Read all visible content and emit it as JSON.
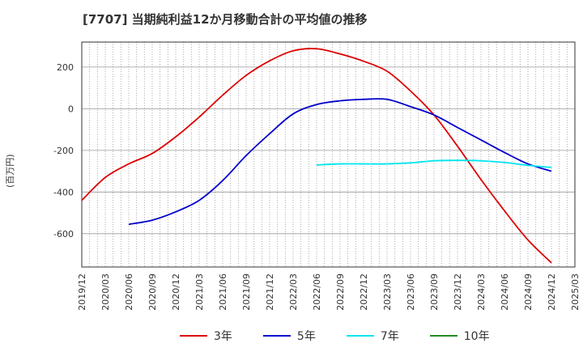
{
  "title": "[7707]  当期純利益12か月移動合計の平均値の推移",
  "chart_data": {
    "type": "line",
    "title": "[7707]  当期純利益12か月移動合計の平均値の推移",
    "xlabel": "",
    "ylabel": "(百万円)",
    "x_ticks": [
      "2019/12",
      "2020/03",
      "2020/06",
      "2020/09",
      "2020/12",
      "2021/03",
      "2021/06",
      "2021/09",
      "2021/12",
      "2022/03",
      "2022/06",
      "2022/09",
      "2022/12",
      "2023/03",
      "2023/06",
      "2023/09",
      "2023/12",
      "2024/03",
      "2024/06",
      "2024/09",
      "2024/12",
      "2025/03"
    ],
    "y_ticks": [
      200,
      0,
      -200,
      -400,
      -600
    ],
    "ylim": [
      -760,
      320
    ],
    "xlim": [
      "2019/12",
      "2025/03"
    ],
    "grid": true,
    "legend_position": "bottom",
    "series": [
      {
        "name": "3年",
        "color": "#dd0000",
        "points": [
          [
            "2019/12",
            -440
          ],
          [
            "2020/03",
            -330
          ],
          [
            "2020/06",
            -265
          ],
          [
            "2020/09",
            -215
          ],
          [
            "2020/12",
            -135
          ],
          [
            "2021/03",
            -40
          ],
          [
            "2021/06",
            65
          ],
          [
            "2021/09",
            160
          ],
          [
            "2021/12",
            230
          ],
          [
            "2022/03",
            278
          ],
          [
            "2022/06",
            288
          ],
          [
            "2022/09",
            263
          ],
          [
            "2022/12",
            228
          ],
          [
            "2023/03",
            180
          ],
          [
            "2023/06",
            85
          ],
          [
            "2023/09",
            -30
          ],
          [
            "2023/12",
            -180
          ],
          [
            "2024/03",
            -340
          ],
          [
            "2024/06",
            -490
          ],
          [
            "2024/09",
            -630
          ],
          [
            "2024/12",
            -740
          ]
        ]
      },
      {
        "name": "5年",
        "color": "#0000cc",
        "points": [
          [
            "2020/06",
            -555
          ],
          [
            "2020/09",
            -535
          ],
          [
            "2020/12",
            -495
          ],
          [
            "2021/03",
            -440
          ],
          [
            "2021/06",
            -345
          ],
          [
            "2021/09",
            -225
          ],
          [
            "2021/12",
            -120
          ],
          [
            "2022/03",
            -25
          ],
          [
            "2022/06",
            20
          ],
          [
            "2022/09",
            38
          ],
          [
            "2022/12",
            45
          ],
          [
            "2023/03",
            45
          ],
          [
            "2023/06",
            10
          ],
          [
            "2023/09",
            -30
          ],
          [
            "2023/12",
            -90
          ],
          [
            "2024/03",
            -150
          ],
          [
            "2024/06",
            -210
          ],
          [
            "2024/09",
            -265
          ],
          [
            "2024/12",
            -300
          ]
        ]
      },
      {
        "name": "7年",
        "color": "#00e5ee",
        "points": [
          [
            "2022/06",
            -270
          ],
          [
            "2022/09",
            -265
          ],
          [
            "2022/12",
            -265
          ],
          [
            "2023/03",
            -265
          ],
          [
            "2023/06",
            -260
          ],
          [
            "2023/09",
            -250
          ],
          [
            "2023/12",
            -248
          ],
          [
            "2024/03",
            -250
          ],
          [
            "2024/06",
            -258
          ],
          [
            "2024/09",
            -272
          ],
          [
            "2024/12",
            -282
          ]
        ]
      },
      {
        "name": "10年",
        "color": "#228b22",
        "points": []
      }
    ]
  }
}
